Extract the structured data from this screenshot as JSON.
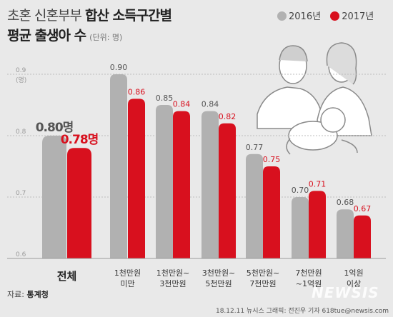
{
  "title": {
    "line1_normal": "초혼 신혼부부",
    "line1_bold": "합산 소득구간별",
    "line2_bold": "평균 출생아 수",
    "unit": "(단위: 명)"
  },
  "legend_label_2016": "2016년",
  "legend_label_2017": "2017년",
  "source_label": "자료:",
  "source_value": "통계청",
  "credit": "18.12.11 뉴시스 그래픽: 전진우 기자 618tue@newsis.com",
  "watermark": "NEWSIS",
  "colors": {
    "y2016": "#b1b1b1",
    "y2017": "#d8101e",
    "grid": "#bdbdbd",
    "bg": "#e9e9e9"
  },
  "chart_data": {
    "type": "bar",
    "categories": [
      "전체",
      "1천만원 미만",
      "1천만원~ 3천만원",
      "3천만원~ 5천만원",
      "5천만원~ 7천만원",
      "7천만원 ~1억원",
      "1억원 이상"
    ],
    "category_lines": [
      [
        "전체"
      ],
      [
        "1천만원",
        "미만"
      ],
      [
        "1천만원~",
        "3천만원"
      ],
      [
        "3천만원~",
        "5천만원"
      ],
      [
        "5천만원~",
        "7천만원"
      ],
      [
        "7천만원",
        "~1억원"
      ],
      [
        "1억원",
        "이상"
      ]
    ],
    "series": [
      {
        "name": "2016년",
        "values": [
          0.8,
          0.9,
          0.85,
          0.84,
          0.77,
          0.7,
          0.68
        ],
        "labels": [
          "0.80명",
          "0.90",
          "0.85",
          "0.84",
          "0.77",
          "0.70",
          "0.68"
        ]
      },
      {
        "name": "2017년",
        "values": [
          0.78,
          0.86,
          0.84,
          0.82,
          0.75,
          0.71,
          0.67
        ],
        "labels": [
          "0.78명",
          "0.86",
          "0.84",
          "0.82",
          "0.75",
          "0.71",
          "0.67"
        ]
      }
    ],
    "yticks": [
      0.6,
      0.7,
      0.8,
      0.9
    ],
    "ytick_labels": [
      "0.6",
      "0.7",
      "0.8",
      "0.9"
    ],
    "y_unit_label": "(명)",
    "ylim": [
      0.6,
      0.9
    ],
    "xlabel": "",
    "ylabel": "",
    "grid": true,
    "legend_position": "top-right"
  }
}
